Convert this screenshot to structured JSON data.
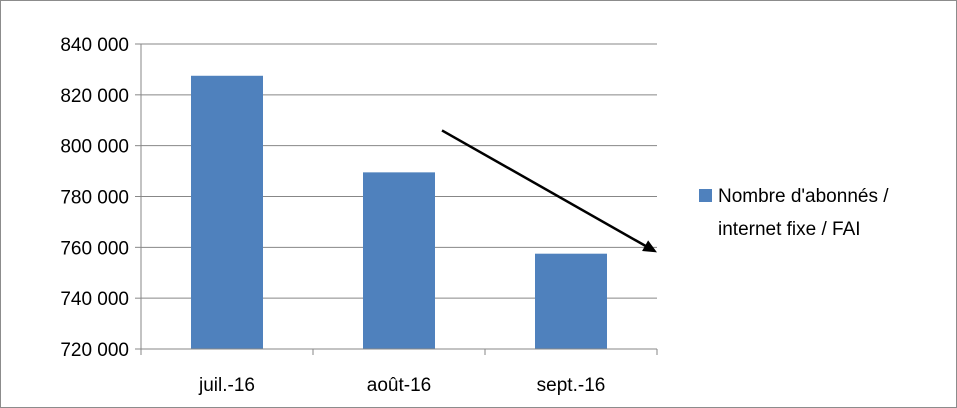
{
  "chart_data": {
    "type": "bar",
    "categories": [
      "juil.-16",
      "août-16",
      "sept.-16"
    ],
    "series": [
      {
        "name": "Nombre d'abonnés / internet fixe / FAI",
        "values": [
          827500,
          789500,
          757500
        ],
        "color": "#4f81bd"
      }
    ],
    "ylim": [
      720000,
      840000
    ],
    "yticks": [
      720000,
      740000,
      760000,
      780000,
      800000,
      820000,
      840000
    ],
    "ytick_labels": [
      "720 000",
      "740 000",
      "760 000",
      "780 000",
      "800 000",
      "820 000",
      "840 000"
    ],
    "grid": true,
    "legend": {
      "position": "right",
      "lines": [
        "Nombre d'abonnés /",
        "internet fixe / FAI"
      ]
    },
    "annotations": [
      {
        "type": "arrow",
        "direction": "down",
        "from": {
          "x": 1.75,
          "y": 806000
        },
        "to": {
          "x": 3.0,
          "y": 758000
        }
      }
    ]
  }
}
